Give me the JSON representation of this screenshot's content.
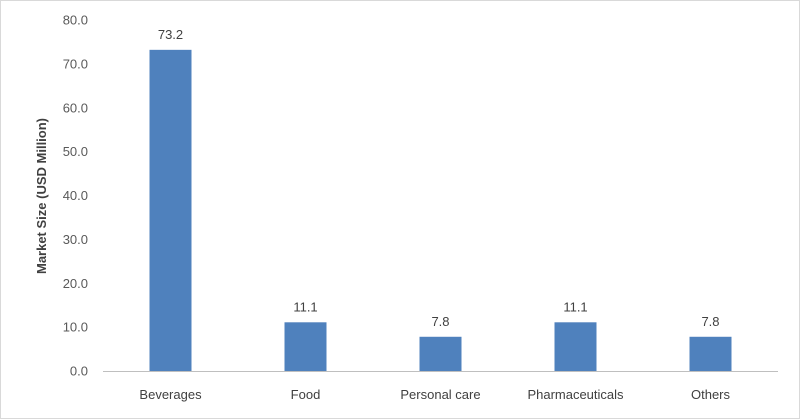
{
  "chart_data": {
    "type": "bar",
    "title": "",
    "xlabel": "",
    "ylabel": "Market Size (USD Million)",
    "categories": [
      "Beverages",
      "Food",
      "Personal care",
      "Pharmaceuticals",
      "Others"
    ],
    "values": [
      73.2,
      11.1,
      7.8,
      11.1,
      7.8
    ],
    "data_labels": [
      "73.2",
      "11.1",
      "7.8",
      "11.1",
      "7.8"
    ],
    "y_ticks": [
      "0.0",
      "10.0",
      "20.0",
      "30.0",
      "40.0",
      "50.0",
      "60.0",
      "70.0",
      "80.0"
    ],
    "ylim": [
      0,
      80
    ],
    "grid": false,
    "legend": "none",
    "colors": {
      "bar": "#4f81bd",
      "axis": "#bfbfbf"
    }
  }
}
